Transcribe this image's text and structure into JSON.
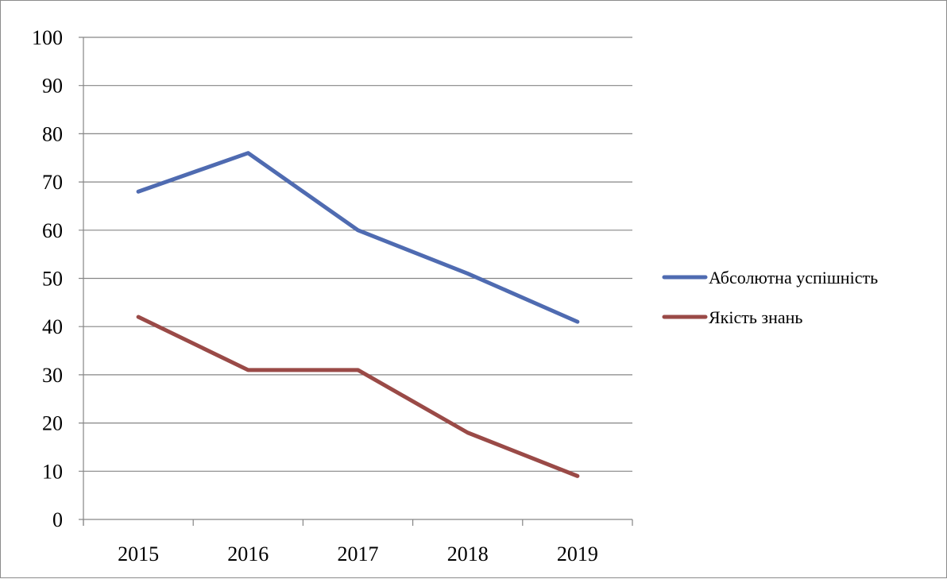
{
  "chart_data": {
    "type": "line",
    "title": "",
    "xlabel": "",
    "ylabel": "",
    "categories": [
      "2015",
      "2016",
      "2017",
      "2018",
      "2019"
    ],
    "ylim": [
      0,
      100
    ],
    "yticks": [
      0,
      10,
      20,
      30,
      40,
      50,
      60,
      70,
      80,
      90,
      100
    ],
    "grid": true,
    "legend_position": "right",
    "series": [
      {
        "name": "Абсолютна успішність",
        "color": "#4f6bb1",
        "values": [
          68,
          76,
          60,
          51,
          41
        ]
      },
      {
        "name": "Якість знань",
        "color": "#9a4a47",
        "values": [
          42,
          31,
          31,
          18,
          9
        ]
      }
    ]
  }
}
